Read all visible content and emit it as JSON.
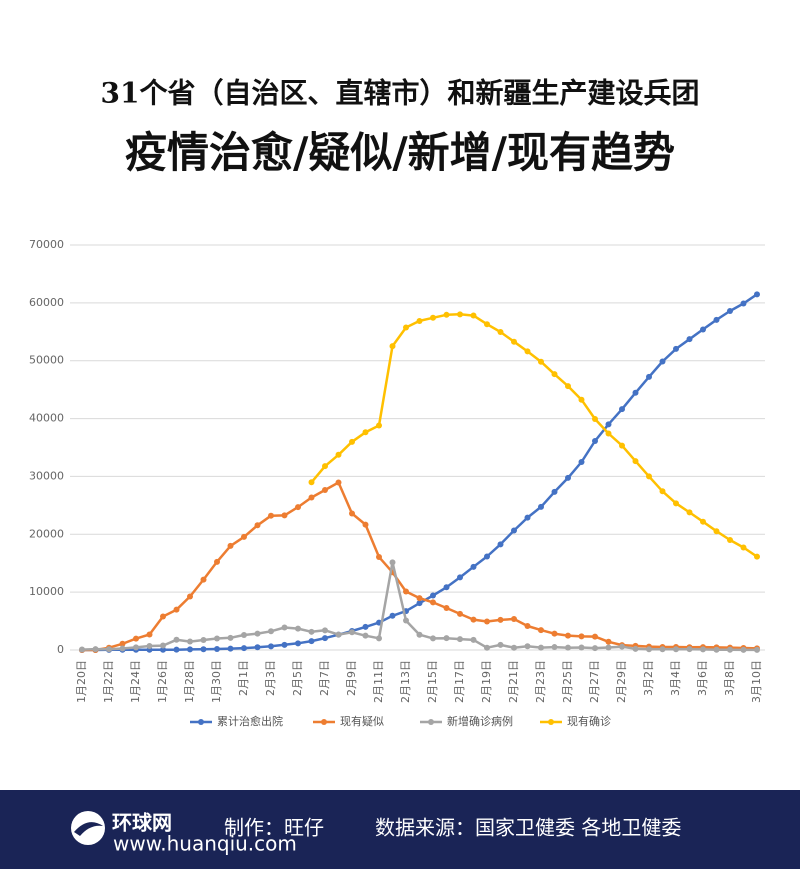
{
  "chart_data": {
    "type": "line",
    "title": "31个省（自治区、直辖市）和新疆生产建设兵团",
    "subtitle": "疫情治愈/疑似/新增/现有趋势",
    "categories": [
      "1月20日",
      null,
      "1月22日",
      null,
      "1月24日",
      null,
      "1月26日",
      null,
      "1月28日",
      null,
      "1月30日",
      null,
      "2月1日",
      null,
      "2月3日",
      null,
      "2月5日",
      null,
      "2月7日",
      null,
      "2月9日",
      null,
      "2月11日",
      null,
      "2月13日",
      null,
      "2月15日",
      null,
      "2月17日",
      null,
      "2月19日",
      null,
      "2月21日",
      null,
      "2月23日",
      null,
      "2月25日",
      null,
      "2月27日",
      null,
      "2月29日",
      null,
      "3月2日",
      null,
      "3月4日",
      null,
      "3月6日",
      null,
      "3月8日",
      null,
      "3月10日"
    ],
    "series": [
      {
        "name": "累计治愈出院",
        "color": "#4472c4",
        "values": [
          0,
          0,
          28,
          34,
          38,
          49,
          51,
          60,
          103,
          124,
          171,
          243,
          328,
          475,
          632,
          892,
          1153,
          1540,
          2050,
          2649,
          3281,
          3996,
          4740,
          5911,
          6723,
          8096,
          9419,
          10844,
          12552,
          14376,
          16155,
          18264,
          20659,
          22888,
          24734,
          27323,
          29745,
          32495,
          36117,
          39002,
          41625,
          44462,
          47204,
          49856,
          52045,
          53726,
          55404,
          57065,
          58600,
          59897,
          61475
        ]
      },
      {
        "name": "现有疑似",
        "color": "#ed7d31",
        "values": [
          0,
          0,
          393,
          1072,
          1965,
          2684,
          5794,
          6973,
          9239,
          12167,
          15238,
          17988,
          19544,
          21558,
          23214,
          23260,
          24702,
          26359,
          27657,
          28942,
          23589,
          21675,
          16067,
          13435,
          10109,
          8969,
          8228,
          7264,
          6242,
          5248,
          4922,
          5206,
          5365,
          4148,
          3434,
          2824,
          2491,
          2358,
          2308,
          1418,
          851,
          715,
          587,
          520,
          522,
          482,
          502,
          458,
          421,
          349,
          285
        ]
      },
      {
        "name": "新增确诊病例",
        "color": "#a5a5a5",
        "values": [
          77,
          149,
          131,
          259,
          444,
          688,
          769,
          1771,
          1459,
          1737,
          1982,
          2102,
          2590,
          2829,
          3235,
          3887,
          3694,
          3143,
          3399,
          2656,
          3062,
          2478,
          2015,
          15152,
          5090,
          2641,
          2009,
          2048,
          1886,
          1749,
          394,
          889,
          397,
          648,
          409,
          508,
          406,
          433,
          327,
          427,
          573,
          202,
          125,
          119,
          139,
          143,
          99,
          44,
          40,
          19,
          24
        ]
      },
      {
        "name": "现有确诊",
        "color": "#ffc000",
        "values": [
          null,
          null,
          null,
          null,
          null,
          null,
          null,
          null,
          null,
          null,
          null,
          null,
          null,
          null,
          null,
          null,
          null,
          28985,
          31774,
          33738,
          35982,
          37626,
          38800,
          52526,
          55748,
          56873,
          57416,
          57934,
          58016,
          57805,
          56303,
          54965,
          53284,
          51606,
          49824,
          47672,
          45604,
          43258,
          39919,
          37414,
          35329,
          32652,
          30004,
          27433,
          25352,
          23784,
          22177,
          20533,
          19016,
          17721,
          16145
        ]
      }
    ],
    "ylim": [
      0,
      70000
    ],
    "yticks": [
      0,
      10000,
      20000,
      30000,
      40000,
      50000,
      60000,
      70000
    ],
    "grid": true
  },
  "footer": {
    "logo": "环球网",
    "site": "www.huanqiu.com",
    "credit": "制作：旺仔",
    "source": "数据来源：国家卫健委 各地卫健委"
  }
}
